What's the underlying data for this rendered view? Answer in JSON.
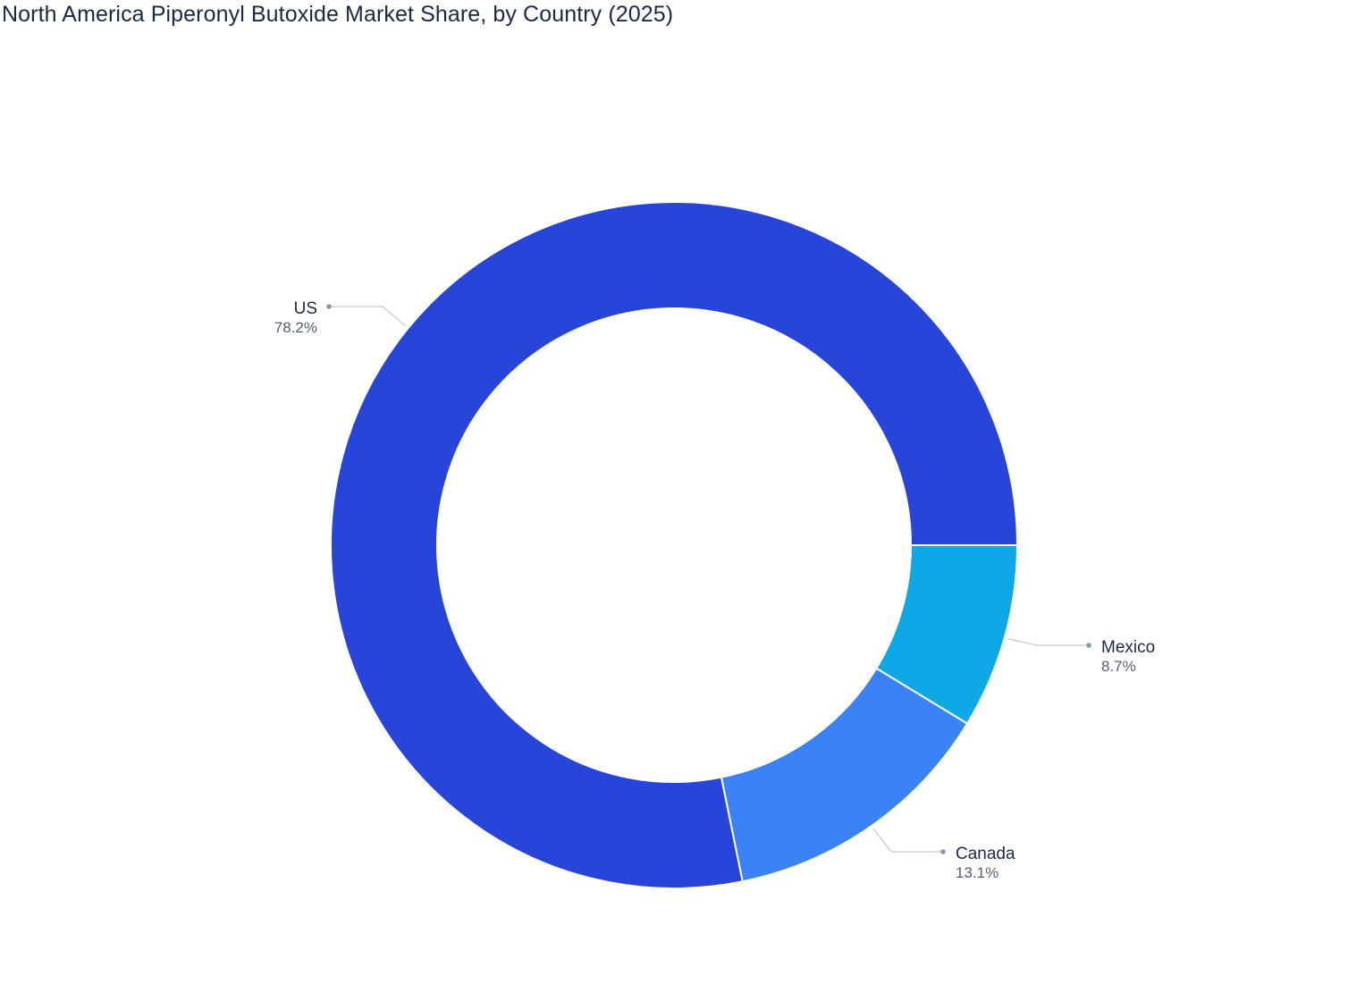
{
  "chart_data": {
    "type": "pie",
    "title": "North America Piperonyl Butoxide Market Share, by Country (2025)",
    "categories": [
      "Mexico",
      "Canada",
      "US"
    ],
    "values": [
      8.7,
      13.1,
      78.2
    ],
    "value_labels": [
      "8.7%",
      "13.1%",
      "78.2%"
    ],
    "unit": "%",
    "colors": [
      "#0ea8e7",
      "#3b82f6",
      "#2845d9"
    ],
    "donut": true,
    "legend": "none"
  }
}
